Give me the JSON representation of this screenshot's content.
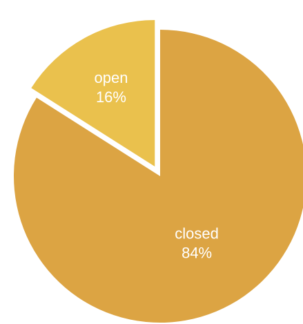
{
  "chart_data": {
    "type": "pie",
    "slices": [
      {
        "label": "open",
        "value": 16,
        "value_label": "16%",
        "color": "#EAC14D",
        "exploded": true
      },
      {
        "label": "closed",
        "value": 84,
        "value_label": "84%",
        "color": "#DCA443",
        "exploded": false
      }
    ],
    "start": "12 o'clock",
    "direction": "counter-clockwise",
    "legend": "none"
  }
}
